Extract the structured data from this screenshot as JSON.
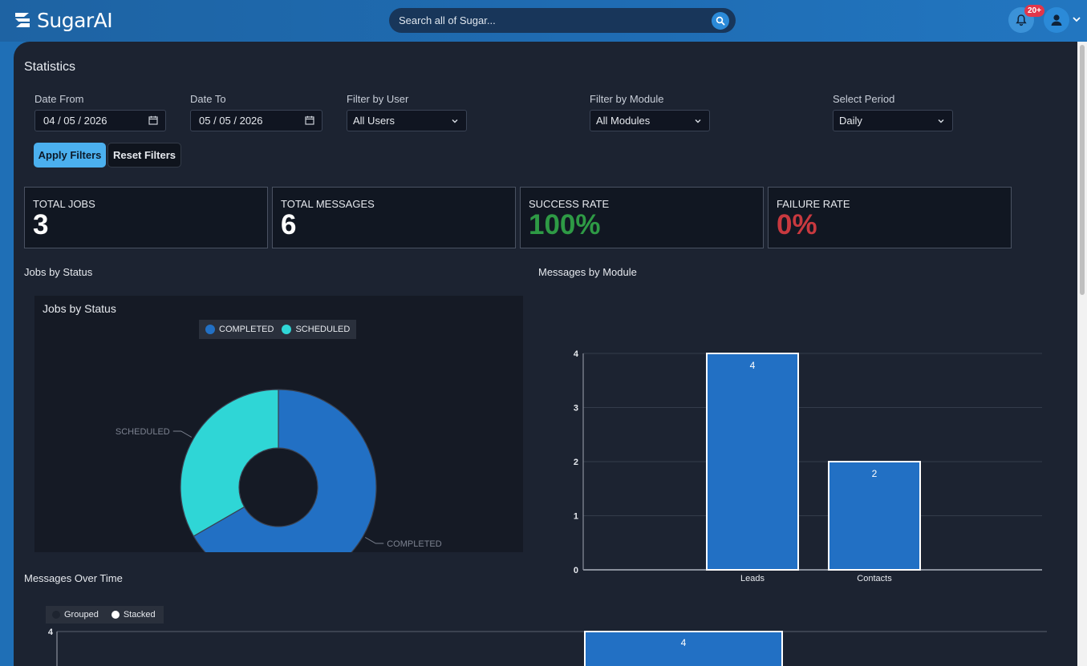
{
  "app": {
    "logo_text": "SugarAI"
  },
  "search": {
    "placeholder": "Search all of Sugar..."
  },
  "notifications": {
    "badge": "20+"
  },
  "page": {
    "title": "Statistics"
  },
  "filters": {
    "date_from_label": "Date From",
    "date_from_value": "04 / 05 / 2026",
    "date_to_label": "Date To",
    "date_to_value": "05 / 05 / 2026",
    "user_label": "Filter by User",
    "user_value": "All Users",
    "module_label": "Filter by Module",
    "module_value": "All Modules",
    "period_label": "Select Period",
    "period_value": "Daily",
    "apply_label": "Apply Filters",
    "reset_label": "Reset Filters"
  },
  "cards": [
    {
      "label": "TOTAL JOBS",
      "value": "3",
      "color": "#ffffff"
    },
    {
      "label": "TOTAL MESSAGES",
      "value": "6",
      "color": "#ffffff"
    },
    {
      "label": "SUCCESS RATE",
      "value": "100%",
      "color": "#2e9a45"
    },
    {
      "label": "FAILURE RATE",
      "value": "0%",
      "color": "#c8393f"
    }
  ],
  "sections": {
    "jobs_by_status": "Jobs by Status",
    "messages_by_module": "Messages by Module",
    "messages_over_time": "Messages Over Time"
  },
  "colors": {
    "completed": "#2270c4",
    "scheduled": "#2fd6d6",
    "bar": "#2270c4"
  },
  "chart_data": [
    {
      "type": "pie",
      "title": "Jobs by Status",
      "categories": [
        "COMPLETED",
        "SCHEDULED"
      ],
      "values": [
        2,
        1
      ],
      "legend": "top"
    },
    {
      "type": "bar",
      "title": "",
      "categories": [
        "Leads",
        "Contacts"
      ],
      "values": [
        4,
        2
      ],
      "ylim": [
        0,
        4
      ],
      "yticks": [
        0,
        1,
        2,
        3,
        4
      ],
      "data_labels": true,
      "grid": true
    },
    {
      "type": "bar",
      "title": "",
      "legend_items": [
        "Grouped",
        "Stacked"
      ],
      "legend_selected": "Stacked",
      "values": [
        4
      ],
      "yticks_visible": [
        4
      ],
      "data_labels": true
    }
  ]
}
